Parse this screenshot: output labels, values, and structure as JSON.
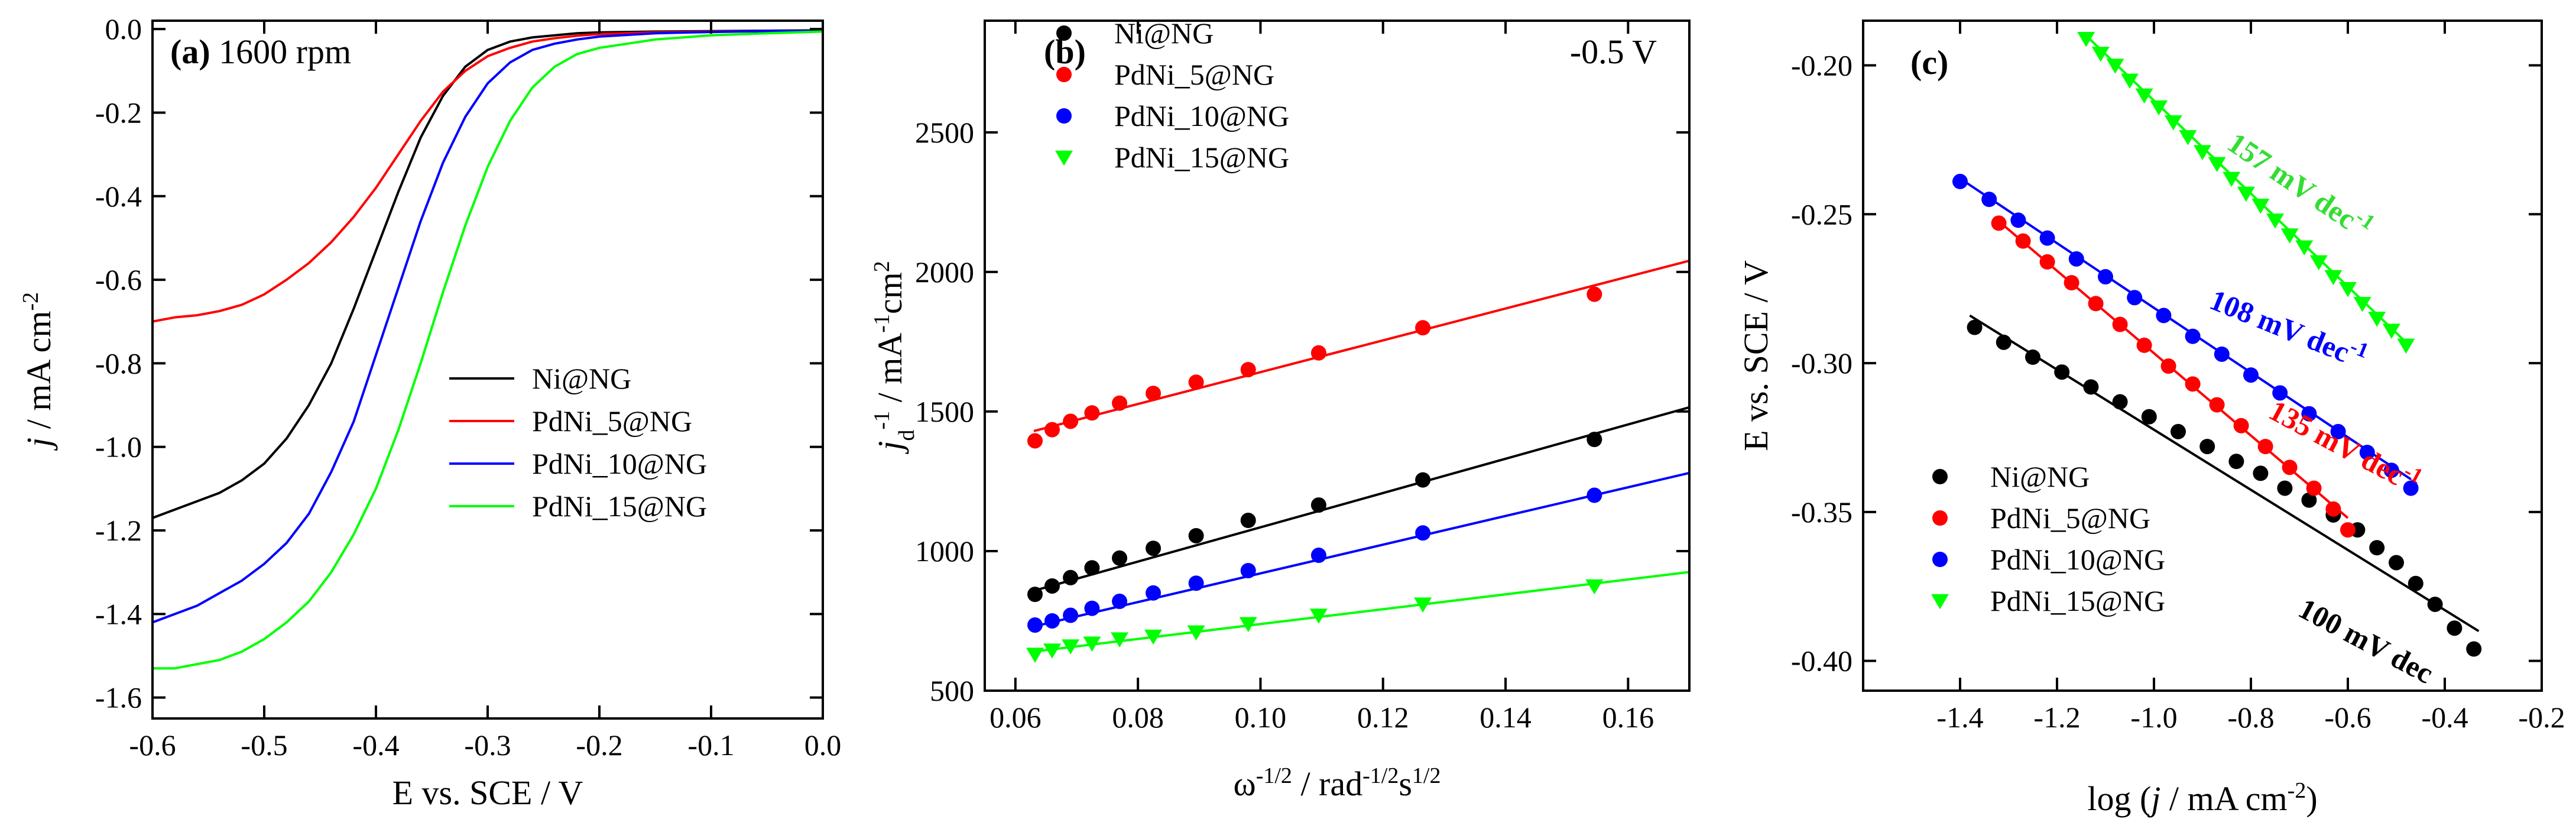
{
  "chart_data": [
    {
      "panel": "(a)",
      "type": "line",
      "title_bold": "(a)",
      "title_rest": "1600 rpm",
      "xlabel": "E vs. SCE / V",
      "ylabel": "j / mA cm-2",
      "ylabel_parts": [
        "j",
        " / mA cm",
        "-2"
      ],
      "xlim": [
        -0.6,
        0.0
      ],
      "ylim": [
        -1.65,
        0.02
      ],
      "xticks": [
        -0.6,
        -0.5,
        -0.4,
        -0.3,
        -0.2,
        -0.1,
        0.0
      ],
      "xtick_labels": [
        "-0.6",
        "-0.5",
        "-0.4",
        "-0.3",
        "-0.2",
        "-0.1",
        "0.0"
      ],
      "yticks": [
        0.0,
        -0.2,
        -0.4,
        -0.6,
        -0.8,
        -1.0,
        -1.2,
        -1.4,
        -1.6
      ],
      "ytick_labels": [
        "0.0",
        "-0.2",
        "-0.4",
        "-0.6",
        "-0.8",
        "-1.0",
        "-1.2",
        "-1.4",
        "-1.6"
      ],
      "legend_position": "lower-right",
      "series": [
        {
          "name": "Ni@NG",
          "color": "#000000",
          "x": [
            -0.6,
            -0.58,
            -0.56,
            -0.54,
            -0.52,
            -0.5,
            -0.48,
            -0.46,
            -0.44,
            -0.42,
            -0.4,
            -0.38,
            -0.36,
            -0.34,
            -0.32,
            -0.3,
            -0.28,
            -0.26,
            -0.24,
            -0.22,
            -0.2,
            -0.15,
            -0.1,
            -0.05,
            0.0
          ],
          "y": [
            -1.17,
            -1.15,
            -1.13,
            -1.11,
            -1.08,
            -1.04,
            -0.98,
            -0.9,
            -0.8,
            -0.67,
            -0.53,
            -0.39,
            -0.26,
            -0.16,
            -0.09,
            -0.05,
            -0.03,
            -0.02,
            -0.015,
            -0.01,
            -0.008,
            -0.006,
            -0.005,
            -0.004,
            -0.003
          ]
        },
        {
          "name": "PdNi_5@NG",
          "color": "#ff0000",
          "x": [
            -0.6,
            -0.58,
            -0.56,
            -0.54,
            -0.52,
            -0.5,
            -0.48,
            -0.46,
            -0.44,
            -0.42,
            -0.4,
            -0.38,
            -0.36,
            -0.34,
            -0.32,
            -0.3,
            -0.28,
            -0.26,
            -0.24,
            -0.22,
            -0.2,
            -0.15,
            -0.1,
            -0.05,
            0.0
          ],
          "y": [
            -0.7,
            -0.69,
            -0.685,
            -0.675,
            -0.66,
            -0.635,
            -0.6,
            -0.56,
            -0.51,
            -0.45,
            -0.38,
            -0.3,
            -0.22,
            -0.15,
            -0.1,
            -0.065,
            -0.045,
            -0.03,
            -0.022,
            -0.016,
            -0.012,
            -0.008,
            -0.006,
            -0.005,
            -0.004
          ]
        },
        {
          "name": "PdNi_10@NG",
          "color": "#0000ff",
          "x": [
            -0.6,
            -0.58,
            -0.56,
            -0.54,
            -0.52,
            -0.5,
            -0.48,
            -0.46,
            -0.44,
            -0.42,
            -0.4,
            -0.38,
            -0.36,
            -0.34,
            -0.32,
            -0.3,
            -0.28,
            -0.26,
            -0.24,
            -0.22,
            -0.2,
            -0.15,
            -0.1,
            -0.05,
            0.0
          ],
          "y": [
            -1.42,
            -1.4,
            -1.38,
            -1.35,
            -1.32,
            -1.28,
            -1.23,
            -1.16,
            -1.06,
            -0.94,
            -0.78,
            -0.62,
            -0.46,
            -0.32,
            -0.21,
            -0.13,
            -0.08,
            -0.05,
            -0.035,
            -0.025,
            -0.018,
            -0.01,
            -0.007,
            -0.005,
            -0.004
          ]
        },
        {
          "name": "PdNi_15@NG",
          "color": "#00ff00",
          "x": [
            -0.6,
            -0.58,
            -0.56,
            -0.54,
            -0.52,
            -0.5,
            -0.48,
            -0.46,
            -0.44,
            -0.42,
            -0.4,
            -0.38,
            -0.36,
            -0.34,
            -0.32,
            -0.3,
            -0.28,
            -0.26,
            -0.24,
            -0.22,
            -0.2,
            -0.15,
            -0.1,
            -0.05,
            0.0
          ],
          "y": [
            -1.53,
            -1.53,
            -1.52,
            -1.51,
            -1.49,
            -1.46,
            -1.42,
            -1.37,
            -1.3,
            -1.21,
            -1.1,
            -0.96,
            -0.8,
            -0.63,
            -0.47,
            -0.33,
            -0.22,
            -0.14,
            -0.09,
            -0.06,
            -0.045,
            -0.025,
            -0.015,
            -0.01,
            -0.006
          ]
        }
      ]
    },
    {
      "panel": "(b)",
      "type": "scatter",
      "title_bold": "(b)",
      "annotation": "-0.5 V",
      "xlabel": "ω-1/2 / rad-1/2s1/2",
      "xlabel_parts": [
        "ω",
        "-1/2",
        " / rad",
        "-1/2",
        "s",
        "1/2"
      ],
      "ylabel": "jd-1 / mA-1cm2",
      "ylabel_parts": [
        "j",
        "d",
        "-1",
        " / mA",
        "-1",
        "cm",
        "2"
      ],
      "xlim": [
        0.055,
        0.17
      ],
      "ylim": [
        500,
        2900
      ],
      "xticks": [
        0.06,
        0.08,
        0.1,
        0.12,
        0.14,
        0.16
      ],
      "xtick_labels": [
        "0.06",
        "0.08",
        "0.10",
        "0.12",
        "0.14",
        "0.16"
      ],
      "yticks": [
        500,
        1000,
        1500,
        2000,
        2500
      ],
      "ytick_labels": [
        "500",
        "1000",
        "1500",
        "2000",
        "2500"
      ],
      "legend_position": "top-left",
      "series": [
        {
          "name": "Ni@NG",
          "color": "#000000",
          "marker": "circle",
          "x": [
            0.0632,
            0.066,
            0.069,
            0.0725,
            0.077,
            0.0825,
            0.0895,
            0.098,
            0.1095,
            0.1265,
            0.1545
          ],
          "y": [
            845,
            875,
            905,
            940,
            975,
            1010,
            1055,
            1110,
            1165,
            1255,
            1400
          ],
          "fit": {
            "x": [
              0.063,
              0.17
            ],
            "y": [
              858,
              1515
            ]
          }
        },
        {
          "name": "PdNi_5@NG",
          "color": "#ff0000",
          "marker": "circle",
          "x": [
            0.0632,
            0.066,
            0.069,
            0.0725,
            0.077,
            0.0825,
            0.0895,
            0.098,
            0.1095,
            0.1265,
            0.1545
          ],
          "y": [
            1395,
            1435,
            1465,
            1495,
            1530,
            1565,
            1605,
            1650,
            1710,
            1800,
            1920
          ],
          "fit": {
            "x": [
              0.063,
              0.17
            ],
            "y": [
              1430,
              2040
            ]
          }
        },
        {
          "name": "PdNi_10@NG",
          "color": "#0000ff",
          "marker": "circle",
          "x": [
            0.0632,
            0.066,
            0.069,
            0.0725,
            0.077,
            0.0825,
            0.0895,
            0.098,
            0.1095,
            0.1265,
            0.1545
          ],
          "y": [
            735,
            750,
            770,
            795,
            820,
            850,
            885,
            930,
            985,
            1065,
            1200
          ],
          "fit": {
            "x": [
              0.063,
              0.17
            ],
            "y": [
              730,
              1280
            ]
          }
        },
        {
          "name": "PdNi_15@NG",
          "color": "#00ff00",
          "marker": "triangle-down",
          "x": [
            0.0632,
            0.066,
            0.069,
            0.0725,
            0.077,
            0.0825,
            0.0895,
            0.098,
            0.1095,
            0.1265,
            0.1545
          ],
          "y": [
            630,
            645,
            660,
            670,
            685,
            695,
            710,
            740,
            770,
            810,
            875
          ],
          "fit": {
            "x": [
              0.063,
              0.17
            ],
            "y": [
              640,
              925
            ]
          }
        }
      ]
    },
    {
      "panel": "(c)",
      "type": "scatter",
      "title_bold": "(c)",
      "xlabel": "log (j / mA cm-2)",
      "xlabel_parts": [
        "log (",
        "j",
        " / mA cm",
        "-2",
        ")"
      ],
      "ylabel": "E vs. SCE / V",
      "xlim": [
        -1.6,
        -0.2
      ],
      "ylim": [
        -0.41,
        -0.185
      ],
      "xticks": [
        -1.4,
        -1.2,
        -1.0,
        -0.8,
        -0.6,
        -0.4,
        -0.2
      ],
      "xtick_labels": [
        "-1.4",
        "-1.2",
        "-1.0",
        "-0.8",
        "-0.6",
        "-0.4",
        "-0.2"
      ],
      "yticks": [
        -0.2,
        -0.25,
        -0.3,
        -0.35,
        -0.4
      ],
      "ytick_labels": [
        "-0.20",
        "-0.25",
        "-0.30",
        "-0.35",
        "-0.40"
      ],
      "legend_position": "bottom-left",
      "series": [
        {
          "name": "Ni@NG",
          "color": "#000000",
          "marker": "circle",
          "slope_label": "100 mV dec",
          "x": [
            -1.37,
            -1.31,
            -1.25,
            -1.19,
            -1.13,
            -1.07,
            -1.01,
            -0.95,
            -0.89,
            -0.83,
            -0.78,
            -0.73,
            -0.68,
            -0.63,
            -0.58,
            -0.54,
            -0.5,
            -0.46,
            -0.42,
            -0.38,
            -0.34
          ],
          "y": [
            -0.288,
            -0.293,
            -0.298,
            -0.303,
            -0.308,
            -0.313,
            -0.318,
            -0.323,
            -0.328,
            -0.333,
            -0.337,
            -0.342,
            -0.346,
            -0.351,
            -0.356,
            -0.362,
            -0.367,
            -0.374,
            -0.381,
            -0.389,
            -0.396
          ],
          "fit": {
            "x": [
              -1.38,
              -0.33
            ],
            "y": [
              -0.284,
              -0.39
            ]
          }
        },
        {
          "name": "PdNi_5@NG",
          "color": "#ff0000",
          "marker": "circle",
          "slope_label": "135 mV dec-1",
          "x": [
            -1.32,
            -1.27,
            -1.22,
            -1.17,
            -1.12,
            -1.07,
            -1.02,
            -0.97,
            -0.92,
            -0.87,
            -0.82,
            -0.77,
            -0.72,
            -0.67,
            -0.63,
            -0.6
          ],
          "y": [
            -0.253,
            -0.259,
            -0.266,
            -0.273,
            -0.28,
            -0.287,
            -0.294,
            -0.301,
            -0.307,
            -0.314,
            -0.321,
            -0.328,
            -0.335,
            -0.342,
            -0.349,
            -0.356
          ],
          "fit": {
            "x": [
              -1.33,
              -0.6
            ],
            "y": [
              -0.251,
              -0.352
            ]
          }
        },
        {
          "name": "PdNi_10@NG",
          "color": "#0000ff",
          "marker": "circle",
          "slope_label": "108 mV dec-1",
          "x": [
            -1.4,
            -1.34,
            -1.28,
            -1.22,
            -1.16,
            -1.1,
            -1.04,
            -0.98,
            -0.92,
            -0.86,
            -0.8,
            -0.74,
            -0.68,
            -0.62,
            -0.56,
            -0.51,
            -0.47
          ],
          "y": [
            -0.239,
            -0.245,
            -0.252,
            -0.258,
            -0.265,
            -0.271,
            -0.278,
            -0.284,
            -0.291,
            -0.297,
            -0.304,
            -0.31,
            -0.317,
            -0.323,
            -0.33,
            -0.336,
            -0.342
          ],
          "fit": {
            "x": [
              -1.4,
              -0.47
            ],
            "y": [
              -0.238,
              -0.339
            ]
          }
        },
        {
          "name": "PdNi_15@NG",
          "color": "#00ff00",
          "marker": "triangle-down",
          "slope_label": "157 mV dec-1",
          "x": [
            -1.14,
            -1.11,
            -1.08,
            -1.05,
            -1.02,
            -0.99,
            -0.96,
            -0.93,
            -0.9,
            -0.87,
            -0.84,
            -0.81,
            -0.78,
            -0.75,
            -0.72,
            -0.69,
            -0.66,
            -0.63,
            -0.6,
            -0.57,
            -0.54,
            -0.51,
            -0.48
          ],
          "y": [
            -0.191,
            -0.196,
            -0.2,
            -0.205,
            -0.21,
            -0.214,
            -0.219,
            -0.224,
            -0.229,
            -0.233,
            -0.238,
            -0.243,
            -0.247,
            -0.252,
            -0.257,
            -0.261,
            -0.266,
            -0.271,
            -0.275,
            -0.28,
            -0.285,
            -0.289,
            -0.294
          ],
          "fit": {
            "x": [
              -1.14,
              -0.48
            ],
            "y": [
              -0.19,
              -0.293
            ]
          }
        }
      ]
    }
  ]
}
